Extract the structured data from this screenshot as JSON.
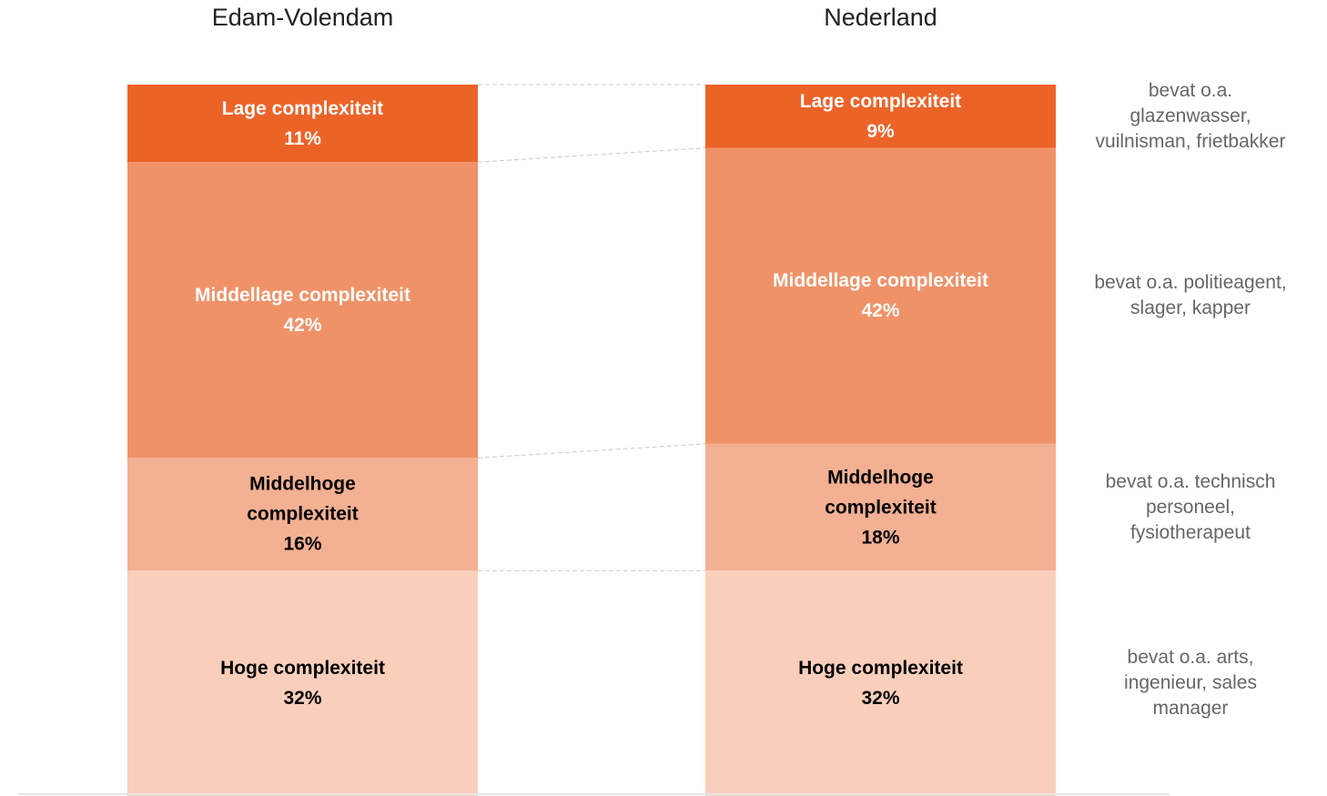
{
  "chart_data": {
    "type": "bar",
    "stacked": true,
    "categories": [
      "Edam-Volendam",
      "Nederland"
    ],
    "series": [
      {
        "name": "Hoge complexiteit",
        "color": "#f9cfbc",
        "label_color": "#000000",
        "values": [
          32,
          32
        ],
        "value_labels": [
          "32%",
          "32%"
        ]
      },
      {
        "name": "Middelhoge complexiteit",
        "color": "#f4b093",
        "label_color": "#000000",
        "values": [
          16,
          18
        ],
        "value_labels": [
          "16%",
          "18%"
        ]
      },
      {
        "name": "Middellage complexiteit",
        "color": "#f09268",
        "label_color": "#ffffff",
        "values": [
          42,
          42
        ],
        "value_labels": [
          "42%",
          "42%"
        ]
      },
      {
        "name": "Lage complexiteit",
        "color": "#ec6328",
        "label_color": "#ffffff",
        "values": [
          11,
          9
        ],
        "value_labels": [
          "11%",
          "9%"
        ]
      }
    ],
    "annotations": [
      [
        "bevat o.a. arts,",
        "ingenieur, sales",
        "manager"
      ],
      [
        "bevat o.a. technisch",
        "personeel,",
        "fysiotherapeut"
      ],
      [
        "bevat o.a. politieagent,",
        "slager, kapper"
      ],
      [
        "bevat o.a.",
        "glazenwasser,",
        "vuilnisman, frietbakker"
      ]
    ]
  }
}
